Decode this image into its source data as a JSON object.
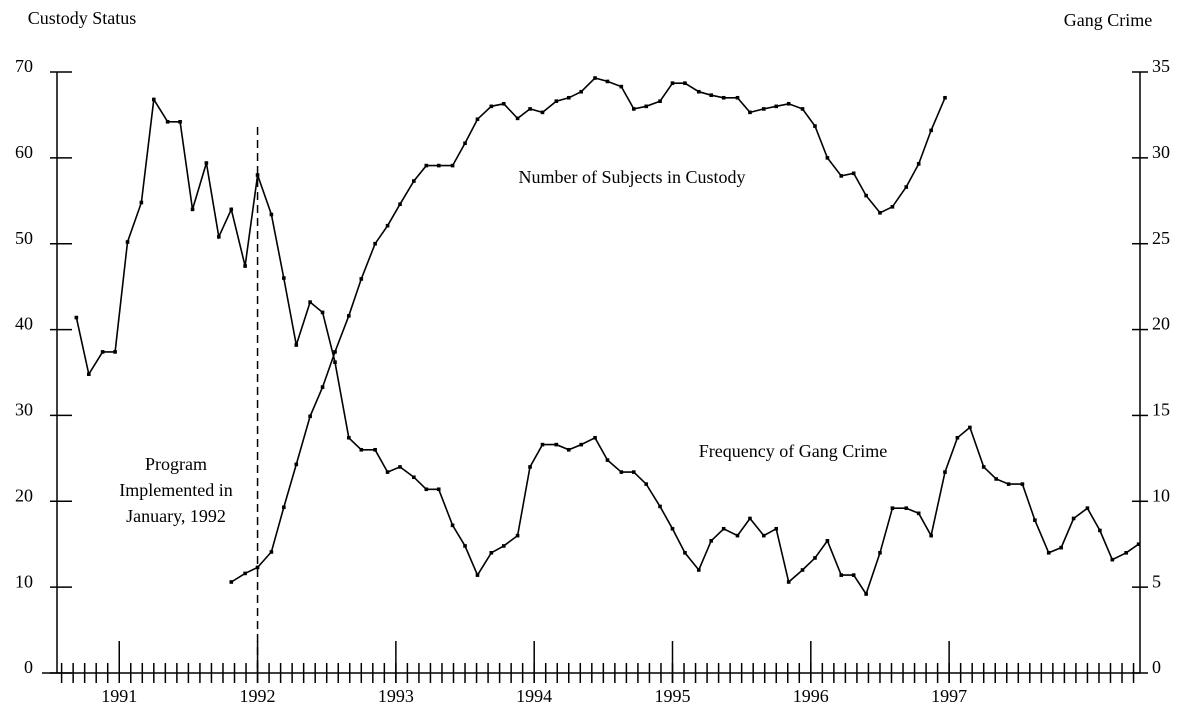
{
  "chart_data": {
    "type": "line",
    "ylabel": "Custody Status",
    "y2label": "Gang Crime",
    "annotation": [
      "Program",
      "Implemented in",
      "January, 1992"
    ],
    "x": [
      1990.69,
      1990.78,
      1990.88,
      1990.97,
      1991.06,
      1991.16,
      1991.25,
      1991.35,
      1991.44,
      1991.53,
      1991.63,
      1991.72,
      1991.81,
      1991.91,
      1992.0,
      1992.1,
      1992.19,
      1992.28,
      1992.38,
      1992.47,
      1992.56,
      1992.66,
      1992.75,
      1992.85,
      1992.94,
      1993.03,
      1993.13,
      1993.22,
      1993.31,
      1993.41,
      1993.5,
      1993.59,
      1993.69,
      1993.78,
      1993.88,
      1993.97,
      1994.06,
      1994.16,
      1994.25,
      1994.34,
      1994.44,
      1994.53,
      1994.63,
      1994.72,
      1994.81,
      1994.91,
      1995.0,
      1995.09,
      1995.19,
      1995.28,
      1995.37,
      1995.47,
      1995.56,
      1995.66,
      1995.75,
      1995.84,
      1995.94,
      1996.03,
      1996.12,
      1996.22,
      1996.31,
      1996.4,
      1996.5,
      1996.59,
      1996.69,
      1996.78,
      1996.87,
      1996.97,
      1997.06,
      1997.15,
      1997.25,
      1997.34,
      1997.43,
      1997.53,
      1997.62,
      1997.72,
      1997.81,
      1997.9,
      1998.0,
      1998.09,
      1998.18,
      1998.28,
      1998.37
    ],
    "series": [
      {
        "name": "Number of Subjects in Custody",
        "color": "#000000",
        "values": [
          null,
          null,
          null,
          null,
          null,
          null,
          null,
          null,
          null,
          null,
          null,
          null,
          10.6,
          11.6,
          12.3,
          14.1,
          19.3,
          24.3,
          29.9,
          33.3,
          37.4,
          41.6,
          45.9,
          50.0,
          52.1,
          54.6,
          57.3,
          59.1,
          59.1,
          59.1,
          61.7,
          64.5,
          66.0,
          66.3,
          64.6,
          65.7,
          65.3,
          66.6,
          67.0,
          67.7,
          69.3,
          68.9,
          68.3,
          65.7,
          66.0,
          66.6,
          68.7,
          68.7,
          67.7,
          67.3,
          67.0,
          67.0,
          65.3,
          65.7,
          66.0,
          66.3,
          65.7,
          63.7,
          60.0,
          57.9,
          58.2,
          55.6,
          53.6,
          54.3,
          56.6,
          59.3,
          63.2,
          67.0,
          null,
          null,
          null,
          null,
          null,
          null,
          null,
          null,
          null,
          null,
          null,
          null,
          null,
          null,
          null
        ]
      },
      {
        "name": "Frequency of Gang Crime",
        "color": "#000000",
        "axis": "y2",
        "values": [
          20.7,
          17.4,
          18.7,
          18.7,
          25.1,
          27.4,
          33.4,
          32.1,
          32.1,
          27.0,
          29.7,
          25.4,
          27.0,
          23.7,
          29.0,
          26.7,
          23.0,
          19.1,
          21.6,
          21.0,
          18.1,
          13.7,
          13.0,
          13.0,
          11.7,
          12.0,
          11.4,
          10.7,
          10.7,
          8.6,
          7.4,
          5.7,
          7.0,
          7.4,
          8.0,
          12.0,
          13.3,
          13.3,
          13.0,
          13.3,
          13.7,
          12.4,
          11.7,
          11.7,
          11.0,
          9.7,
          8.4,
          7.0,
          6.0,
          7.7,
          8.4,
          8.0,
          9.0,
          8.0,
          8.4,
          5.3,
          6.0,
          6.7,
          7.7,
          5.7,
          5.7,
          4.6,
          7.0,
          9.6,
          9.6,
          9.3,
          8.0,
          11.7,
          13.7,
          14.3,
          12.0,
          11.3,
          11.0,
          11.0,
          8.9,
          7.0,
          7.3,
          9.0,
          9.6,
          8.3,
          6.6,
          7.0,
          7.5
        ]
      }
    ],
    "xlim": [
      1990.55,
      1998.38
    ],
    "xticks": [
      1991,
      1992,
      1993,
      1994,
      1995,
      1996,
      1997
    ],
    "ylim": [
      0,
      70
    ],
    "yticks": [
      0,
      10,
      20,
      30,
      40,
      50,
      60,
      70
    ],
    "y2lim": [
      0,
      35
    ],
    "y2ticks": [
      0,
      5,
      10,
      15,
      20,
      25,
      30,
      35
    ]
  }
}
